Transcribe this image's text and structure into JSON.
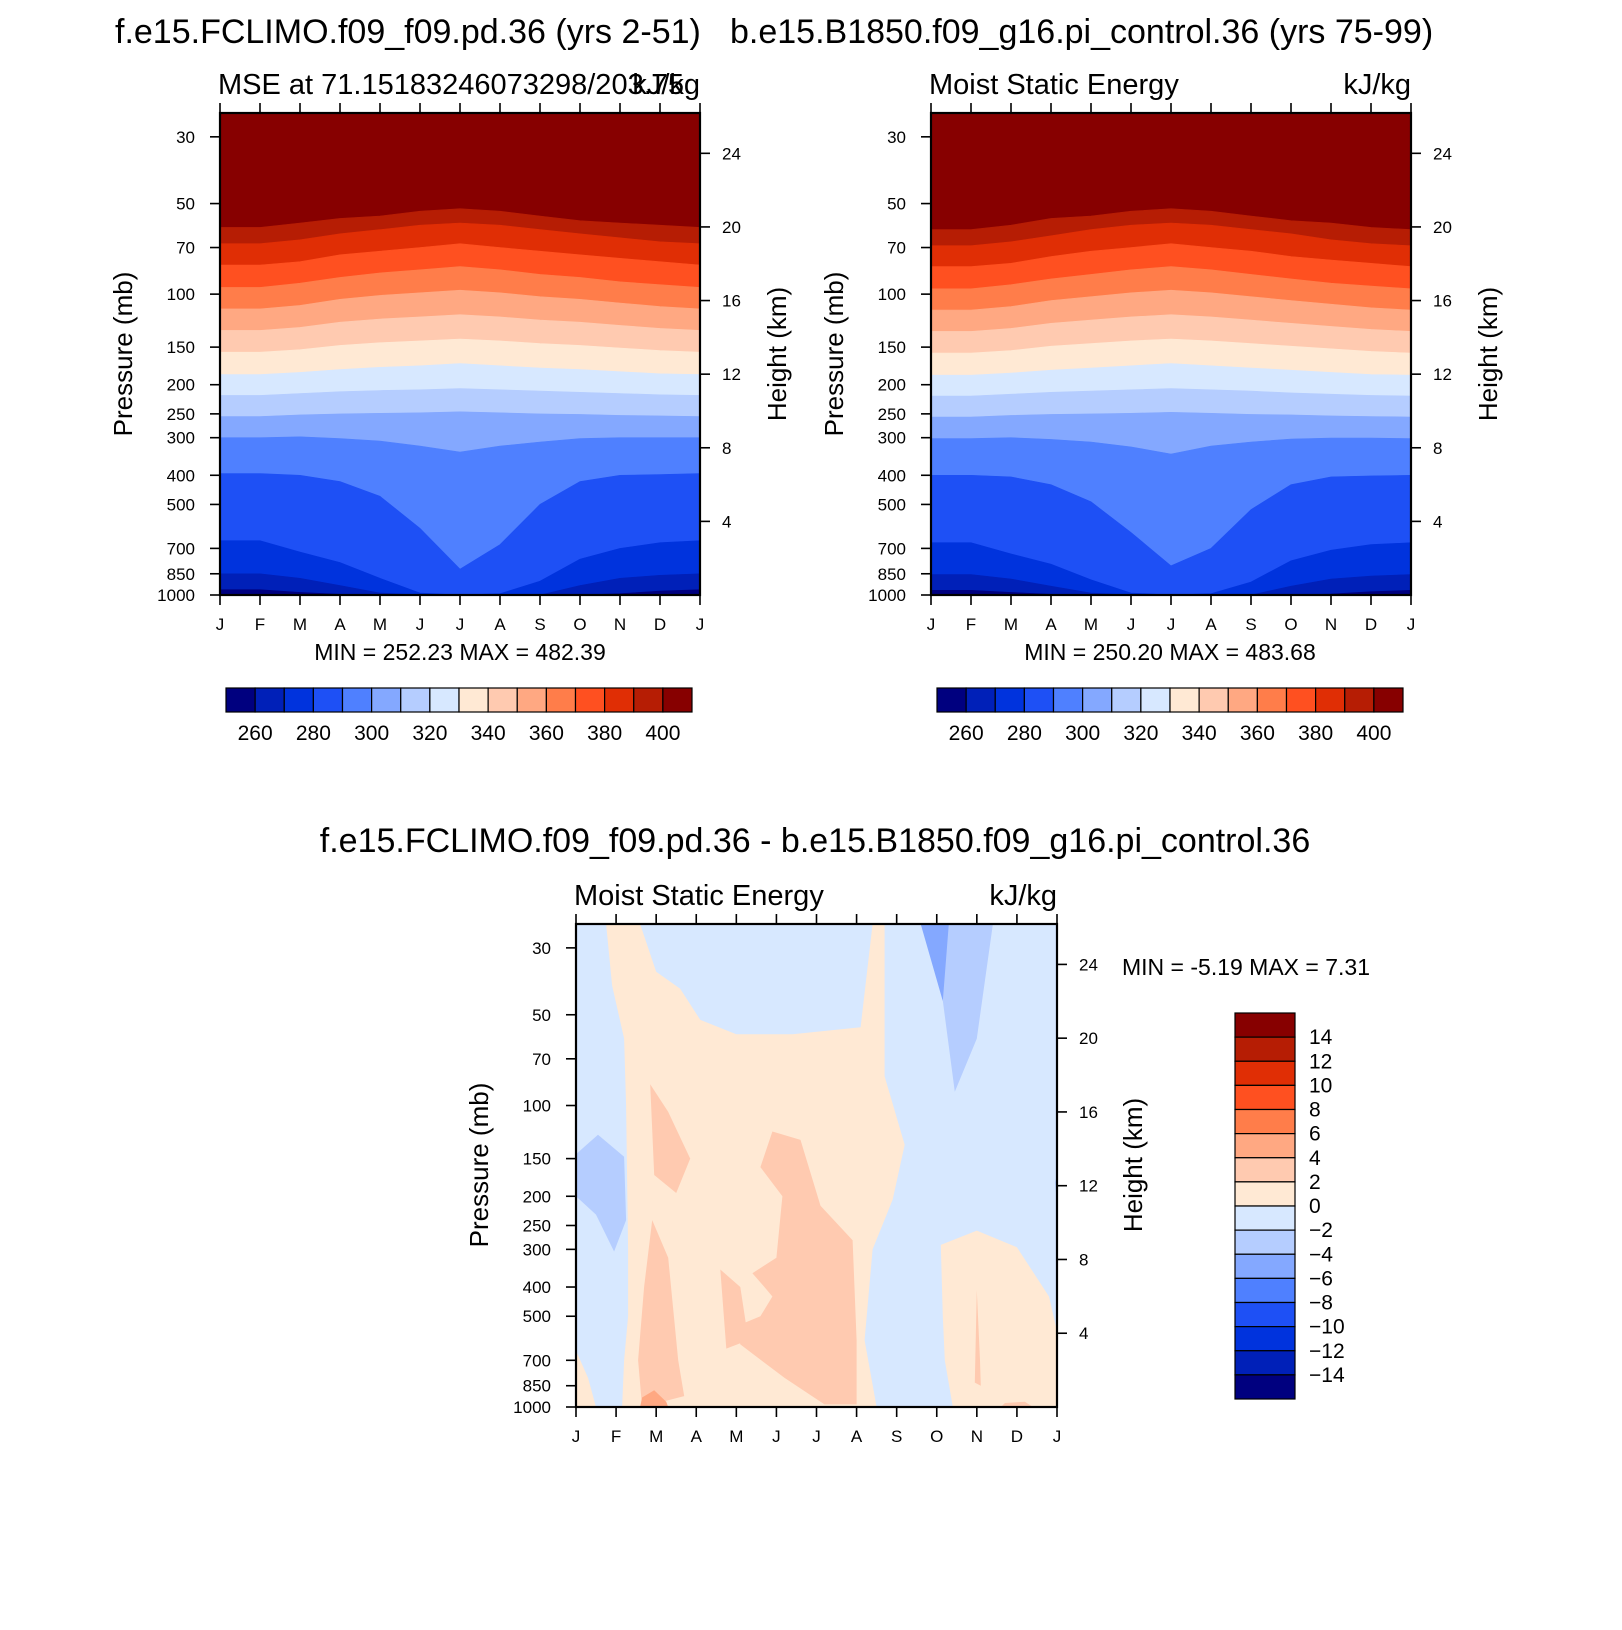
{
  "chart_data": [
    {
      "type": "heatmap",
      "title": "f.e15.FCLIMO.f09_f09.pd.36 (yrs 2-51)",
      "subtitle_left": "MSE at 71.15183246073298/203.75",
      "subtitle_right": "kJ/kg",
      "ylabel": "Pressure (mb)",
      "ylabel_right": "Height (km)",
      "x_ticks": [
        "J",
        "F",
        "M",
        "A",
        "M",
        "J",
        "J",
        "A",
        "S",
        "O",
        "N",
        "D",
        "J"
      ],
      "y_ticks": [
        30,
        50,
        70,
        100,
        150,
        200,
        250,
        300,
        400,
        500,
        700,
        850,
        1000
      ],
      "y_ticks_right": [
        24,
        20,
        16,
        12,
        8,
        4
      ],
      "ylim": [
        1000,
        25
      ],
      "y_scale": "log",
      "min_max_text": "MIN = 252.23 MAX = 482.39",
      "colorbar": {
        "orientation": "horizontal",
        "levels": [
          250,
          260,
          270,
          280,
          290,
          300,
          310,
          320,
          330,
          340,
          350,
          360,
          370,
          380,
          390,
          400
        ],
        "labels": [
          "260",
          "280",
          "300",
          "320",
          "340",
          "360",
          "380",
          "400"
        ],
        "colors": [
          "#00007f",
          "#0020b8",
          "#0033dd",
          "#1e50f5",
          "#4f80ff",
          "#84a8ff",
          "#b5cdff",
          "#d7e8ff",
          "#ffe9d4",
          "#ffcab0",
          "#ffa882",
          "#ff7d4a",
          "#ff5020",
          "#e02e05",
          "#b61d04",
          "#870000"
        ]
      },
      "contour_boundaries_pressure_mb": {
        "data_columns": [
          "J",
          "F",
          "M",
          "A",
          "M",
          "J",
          "J",
          "A",
          "S",
          "O",
          "N",
          "D",
          "J"
        ],
        "400": [
          60,
          60,
          58,
          56,
          55,
          53,
          52,
          53,
          55,
          57,
          58,
          59,
          60
        ],
        "390": [
          68,
          68,
          66,
          63,
          61,
          59,
          58,
          59,
          61,
          63,
          65,
          67,
          68
        ],
        "380": [
          80,
          80,
          78,
          74,
          72,
          70,
          68,
          70,
          72,
          74,
          76,
          78,
          80
        ],
        "370": [
          95,
          95,
          92,
          88,
          85,
          83,
          81,
          83,
          86,
          88,
          91,
          93,
          95
        ],
        "360": [
          112,
          112,
          109,
          104,
          101,
          99,
          97,
          99,
          102,
          104,
          107,
          110,
          112
        ],
        "350": [
          132,
          132,
          129,
          124,
          121,
          119,
          117,
          119,
          122,
          124,
          127,
          130,
          132
        ],
        "340": [
          156,
          156,
          153,
          148,
          145,
          143,
          141,
          143,
          146,
          148,
          151,
          154,
          156
        ],
        "330": [
          185,
          185,
          182,
          178,
          175,
          173,
          170,
          173,
          176,
          178,
          181,
          184,
          185
        ],
        "320": [
          217,
          217,
          214,
          211,
          209,
          208,
          206,
          208,
          210,
          212,
          214,
          216,
          217
        ],
        "310": [
          255,
          255,
          252,
          250,
          249,
          248,
          246,
          248,
          250,
          251,
          253,
          254,
          255
        ],
        "300": [
          300,
          300,
          298,
          302,
          308,
          320,
          335,
          320,
          310,
          302,
          300,
          300,
          300
        ],
        "290": [
          395,
          395,
          400,
          420,
          470,
          600,
          820,
          680,
          500,
          420,
          400,
          398,
          395
        ],
        "280": [
          660,
          660,
          720,
          780,
          880,
          985,
          1000,
          990,
          900,
          760,
          700,
          670,
          660
        ],
        "270": [
          850,
          850,
          880,
          930,
          985,
          1000,
          1000,
          1000,
          1000,
          930,
          880,
          860,
          850
        ],
        "260": [
          960,
          960,
          980,
          995,
          1000,
          1000,
          1000,
          1000,
          1000,
          1000,
          990,
          970,
          960
        ]
      }
    },
    {
      "type": "heatmap",
      "title": "b.e15.B1850.f09_g16.pi_control.36 (yrs 75-99)",
      "subtitle_left": "Moist Static Energy",
      "subtitle_right": "kJ/kg",
      "ylabel": "Pressure (mb)",
      "ylabel_right": "Height (km)",
      "x_ticks": [
        "J",
        "F",
        "M",
        "A",
        "M",
        "J",
        "J",
        "A",
        "S",
        "O",
        "N",
        "D",
        "J"
      ],
      "y_ticks": [
        30,
        50,
        70,
        100,
        150,
        200,
        250,
        300,
        400,
        500,
        700,
        850,
        1000
      ],
      "y_ticks_right": [
        24,
        20,
        16,
        12,
        8,
        4
      ],
      "ylim": [
        1000,
        25
      ],
      "y_scale": "log",
      "min_max_text": "MIN = 250.20 MAX = 483.68",
      "colorbar": {
        "orientation": "horizontal",
        "levels": [
          250,
          260,
          270,
          280,
          290,
          300,
          310,
          320,
          330,
          340,
          350,
          360,
          370,
          380,
          390,
          400
        ],
        "labels": [
          "260",
          "280",
          "300",
          "320",
          "340",
          "360",
          "380",
          "400"
        ],
        "colors": [
          "#00007f",
          "#0020b8",
          "#0033dd",
          "#1e50f5",
          "#4f80ff",
          "#84a8ff",
          "#b5cdff",
          "#d7e8ff",
          "#ffe9d4",
          "#ffcab0",
          "#ffa882",
          "#ff7d4a",
          "#ff5020",
          "#e02e05",
          "#b61d04",
          "#870000"
        ]
      },
      "contour_boundaries_pressure_mb": {
        "data_columns": [
          "J",
          "F",
          "M",
          "A",
          "M",
          "J",
          "J",
          "A",
          "S",
          "O",
          "N",
          "D",
          "J"
        ],
        "400": [
          61,
          61,
          59,
          56,
          55,
          53,
          52,
          53,
          55,
          57,
          58,
          60,
          61
        ],
        "390": [
          69,
          69,
          67,
          64,
          61,
          59,
          58,
          59,
          61,
          63,
          66,
          68,
          69
        ],
        "380": [
          81,
          81,
          79,
          75,
          72,
          70,
          68,
          70,
          72,
          75,
          77,
          79,
          81
        ],
        "370": [
          96,
          96,
          93,
          89,
          86,
          83,
          81,
          83,
          86,
          89,
          92,
          94,
          96
        ],
        "360": [
          113,
          113,
          110,
          105,
          102,
          99,
          97,
          99,
          102,
          105,
          108,
          111,
          113
        ],
        "350": [
          133,
          133,
          130,
          125,
          122,
          119,
          117,
          119,
          122,
          125,
          128,
          131,
          133
        ],
        "340": [
          157,
          157,
          154,
          149,
          146,
          143,
          141,
          143,
          146,
          149,
          152,
          155,
          157
        ],
        "330": [
          186,
          186,
          183,
          179,
          176,
          173,
          170,
          173,
          176,
          179,
          182,
          185,
          186
        ],
        "320": [
          218,
          218,
          215,
          212,
          210,
          208,
          206,
          208,
          210,
          213,
          215,
          217,
          218
        ],
        "310": [
          256,
          256,
          253,
          251,
          250,
          249,
          247,
          249,
          251,
          252,
          254,
          255,
          256
        ],
        "300": [
          302,
          302,
          300,
          304,
          310,
          322,
          340,
          320,
          310,
          303,
          301,
          301,
          302
        ],
        "290": [
          400,
          400,
          405,
          430,
          490,
          620,
          800,
          700,
          520,
          430,
          405,
          402,
          400
        ],
        "280": [
          670,
          670,
          730,
          790,
          890,
          985,
          1000,
          990,
          905,
          770,
          710,
          680,
          670
        ],
        "270": [
          855,
          855,
          885,
          935,
          985,
          1000,
          1000,
          1000,
          1000,
          935,
          885,
          865,
          855
        ],
        "260": [
          965,
          965,
          980,
          995,
          1000,
          1000,
          1000,
          1000,
          1000,
          1000,
          992,
          975,
          965
        ]
      }
    },
    {
      "type": "heatmap",
      "title": "f.e15.FCLIMO.f09_f09.pd.36 - b.e15.B1850.f09_g16.pi_control.36",
      "subtitle_left": "Moist Static Energy",
      "subtitle_right": "kJ/kg",
      "ylabel": "Pressure (mb)",
      "ylabel_right": "Height (km)",
      "x_ticks": [
        "J",
        "F",
        "M",
        "A",
        "M",
        "J",
        "J",
        "A",
        "S",
        "O",
        "N",
        "D",
        "J"
      ],
      "y_ticks": [
        30,
        50,
        70,
        100,
        150,
        200,
        250,
        300,
        400,
        500,
        700,
        850,
        1000
      ],
      "y_ticks_right": [
        24,
        20,
        16,
        12,
        8,
        4
      ],
      "ylim": [
        1000,
        25
      ],
      "y_scale": "log",
      "min_max_text": "MIN = -5.19 MAX = 7.31",
      "colorbar": {
        "orientation": "vertical",
        "levels": [
          -16,
          -14,
          -12,
          -10,
          -8,
          -6,
          -4,
          -2,
          0,
          2,
          4,
          6,
          8,
          10,
          12,
          14,
          16
        ],
        "labels": [
          "14",
          "12",
          "10",
          "8",
          "6",
          "4",
          "2",
          "0",
          "−2",
          "−4",
          "−6",
          "−8",
          "−10",
          "−12",
          "−14"
        ],
        "colors": [
          "#00007f",
          "#0020b8",
          "#0033dd",
          "#1e50f5",
          "#4f80ff",
          "#84a8ff",
          "#b5cdff",
          "#d7e8ff",
          "#ffe9d4",
          "#ffcab0",
          "#ffa882",
          "#ff7d4a",
          "#ff5020",
          "#e02e05",
          "#b61d04",
          "#870000"
        ]
      },
      "field_description_values_kJ_per_kg": {
        "background": -1,
        "positive_band_feb_to_sep": 1,
        "positive_cores_mar_may_jul_aug": 3,
        "surface_max_mar": 5,
        "negative_core_oct_nov_upper": -5,
        "negative_core_jan_feb_150_300mb": -3,
        "positive_oct_dec_lower": 1
      }
    }
  ]
}
